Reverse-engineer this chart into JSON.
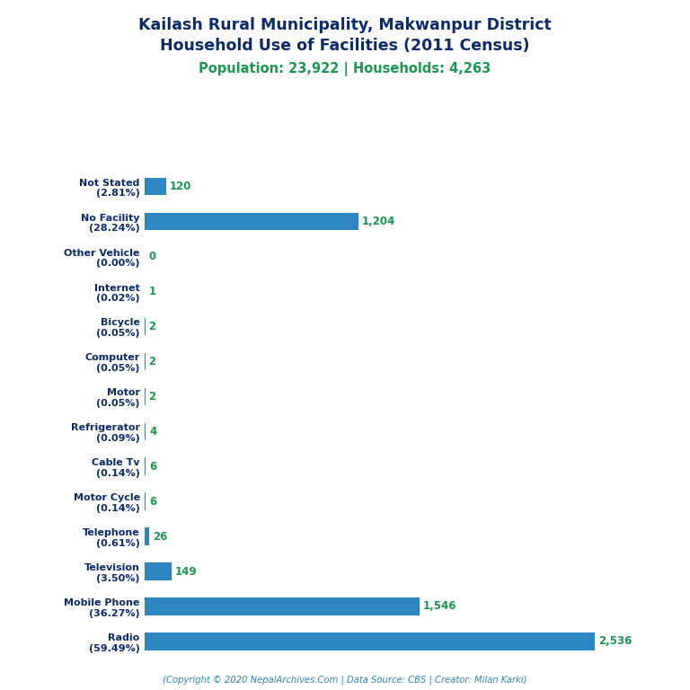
{
  "title_line1": "Kailash Rural Municipality, Makwanpur District",
  "title_line2": "Household Use of Facilities (2011 Census)",
  "subtitle": "Population: 23,922 | Households: 4,263",
  "footer": "(Copyright © 2020 NepalArchives.Com | Data Source: CBS | Creator: Milan Karki)",
  "categories": [
    "Radio\n(59.49%)",
    "Mobile Phone\n(36.27%)",
    "Television\n(3.50%)",
    "Telephone\n(0.61%)",
    "Motor Cycle\n(0.14%)",
    "Cable Tv\n(0.14%)",
    "Refrigerator\n(0.09%)",
    "Motor\n(0.05%)",
    "Computer\n(0.05%)",
    "Bicycle\n(0.05%)",
    "Internet\n(0.02%)",
    "Other Vehicle\n(0.00%)",
    "No Facility\n(28.24%)",
    "Not Stated\n(2.81%)"
  ],
  "values": [
    2536,
    1546,
    149,
    26,
    6,
    6,
    4,
    2,
    2,
    2,
    1,
    0,
    1204,
    120
  ],
  "bar_color": "#2e86c1",
  "value_color": "#1a9850",
  "title_color": "#0d2b6b",
  "subtitle_color": "#1a9850",
  "footer_color": "#2e86c1",
  "background_color": "#ffffff",
  "xlim": [
    0,
    2800
  ],
  "bar_height": 0.5
}
